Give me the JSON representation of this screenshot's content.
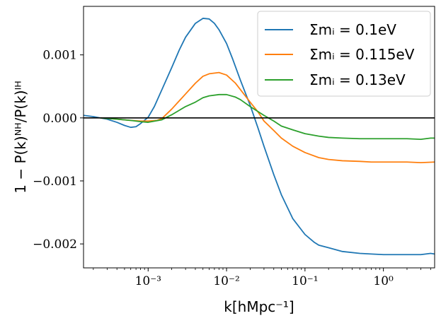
{
  "chart_data": {
    "type": "line",
    "xlabel": "k[hMpc⁻¹]",
    "ylabel": "1 − P(k)ᴺᴴ/P(k)ᴵᴴ",
    "xscale": "log",
    "xlim": [
      0.00015,
      4.5
    ],
    "ylim": [
      -0.00238,
      0.00177
    ],
    "x_ticks": [
      "10⁻³",
      "10⁻²",
      "10⁻¹",
      "10⁰"
    ],
    "x_tick_values": [
      0.001,
      0.01,
      0.1,
      1
    ],
    "y_ticks": [
      "−0.002",
      "−0.001",
      "0.000",
      "0.001"
    ],
    "y_tick_values": [
      -0.002,
      -0.001,
      0.0,
      0.001
    ],
    "grid": false,
    "legend_position": "top-right",
    "reference_line": {
      "y": 0.0,
      "color": "#000000"
    },
    "series": [
      {
        "name": "Σmᵢ = 0.1eV",
        "color": "#1f77b4",
        "points": [
          [
            0.00015,
            4e-05
          ],
          [
            0.0002,
            2e-05
          ],
          [
            0.0003,
            -2e-05
          ],
          [
            0.0004,
            -7e-05
          ],
          [
            0.0005,
            -0.00012
          ],
          [
            0.0006,
            -0.00015
          ],
          [
            0.0007,
            -0.00014
          ],
          [
            0.0008,
            -9e-05
          ],
          [
            0.001,
            1e-05
          ],
          [
            0.0012,
            0.00018
          ],
          [
            0.0015,
            0.00045
          ],
          [
            0.002,
            0.0008
          ],
          [
            0.0025,
            0.00108
          ],
          [
            0.003,
            0.00128
          ],
          [
            0.004,
            0.0015
          ],
          [
            0.005,
            0.00158
          ],
          [
            0.006,
            0.00157
          ],
          [
            0.007,
            0.0015
          ],
          [
            0.008,
            0.0014
          ],
          [
            0.01,
            0.00118
          ],
          [
            0.012,
            0.00093
          ],
          [
            0.015,
            0.0006
          ],
          [
            0.02,
            0.0002
          ],
          [
            0.025,
            -0.00015
          ],
          [
            0.03,
            -0.00045
          ],
          [
            0.04,
            -0.0009
          ],
          [
            0.05,
            -0.00122
          ],
          [
            0.07,
            -0.0016
          ],
          [
            0.1,
            -0.00185
          ],
          [
            0.13,
            -0.00197
          ],
          [
            0.15,
            -0.00202
          ],
          [
            0.2,
            -0.00206
          ],
          [
            0.3,
            -0.00212
          ],
          [
            0.5,
            -0.00215
          ],
          [
            0.7,
            -0.00216
          ],
          [
            1.0,
            -0.00217
          ],
          [
            2.0,
            -0.00217
          ],
          [
            3.0,
            -0.00217
          ],
          [
            4.0,
            -0.00215
          ],
          [
            4.5,
            -0.00216
          ]
        ]
      },
      {
        "name": "Σmᵢ = 0.115eV",
        "color": "#ff7f0e",
        "points": [
          [
            0.00025,
            0.0
          ],
          [
            0.0004,
            -2e-05
          ],
          [
            0.0006,
            -4e-05
          ],
          [
            0.0008,
            -5e-05
          ],
          [
            0.001,
            -5e-05
          ],
          [
            0.0013,
            -4e-05
          ],
          [
            0.0015,
            -1e-05
          ],
          [
            0.002,
            0.00014
          ],
          [
            0.003,
            0.00038
          ],
          [
            0.004,
            0.00055
          ],
          [
            0.005,
            0.00066
          ],
          [
            0.006,
            0.0007
          ],
          [
            0.008,
            0.00072
          ],
          [
            0.01,
            0.00068
          ],
          [
            0.013,
            0.00055
          ],
          [
            0.015,
            0.00045
          ],
          [
            0.02,
            0.00025
          ],
          [
            0.025,
            0.0001
          ],
          [
            0.03,
            -5e-05
          ],
          [
            0.04,
            -0.0002
          ],
          [
            0.05,
            -0.00032
          ],
          [
            0.07,
            -0.00045
          ],
          [
            0.1,
            -0.00055
          ],
          [
            0.15,
            -0.00063
          ],
          [
            0.2,
            -0.00066
          ],
          [
            0.3,
            -0.00068
          ],
          [
            0.5,
            -0.00069
          ],
          [
            0.7,
            -0.0007
          ],
          [
            1.0,
            -0.0007
          ],
          [
            2.0,
            -0.0007
          ],
          [
            3.0,
            -0.00071
          ],
          [
            4.5,
            -0.0007
          ]
        ]
      },
      {
        "name": "Σmᵢ = 0.13eV",
        "color": "#2ca02c",
        "points": [
          [
            0.00025,
            0.0
          ],
          [
            0.0004,
            -2e-05
          ],
          [
            0.0006,
            -4e-05
          ],
          [
            0.0008,
            -6e-05
          ],
          [
            0.001,
            -7e-05
          ],
          [
            0.0015,
            -3e-05
          ],
          [
            0.002,
            5e-05
          ],
          [
            0.003,
            0.00018
          ],
          [
            0.004,
            0.00025
          ],
          [
            0.005,
            0.00032
          ],
          [
            0.006,
            0.00035
          ],
          [
            0.008,
            0.00037
          ],
          [
            0.01,
            0.00037
          ],
          [
            0.013,
            0.00033
          ],
          [
            0.015,
            0.00029
          ],
          [
            0.02,
            0.00018
          ],
          [
            0.03,
            4e-05
          ],
          [
            0.04,
            -5e-05
          ],
          [
            0.05,
            -0.00013
          ],
          [
            0.07,
            -0.00019
          ],
          [
            0.1,
            -0.00025
          ],
          [
            0.15,
            -0.00029
          ],
          [
            0.2,
            -0.00031
          ],
          [
            0.3,
            -0.00032
          ],
          [
            0.5,
            -0.00033
          ],
          [
            1.0,
            -0.00033
          ],
          [
            2.0,
            -0.00033
          ],
          [
            3.0,
            -0.00034
          ],
          [
            4.0,
            -0.00032
          ],
          [
            4.5,
            -0.00032
          ]
        ]
      }
    ]
  }
}
